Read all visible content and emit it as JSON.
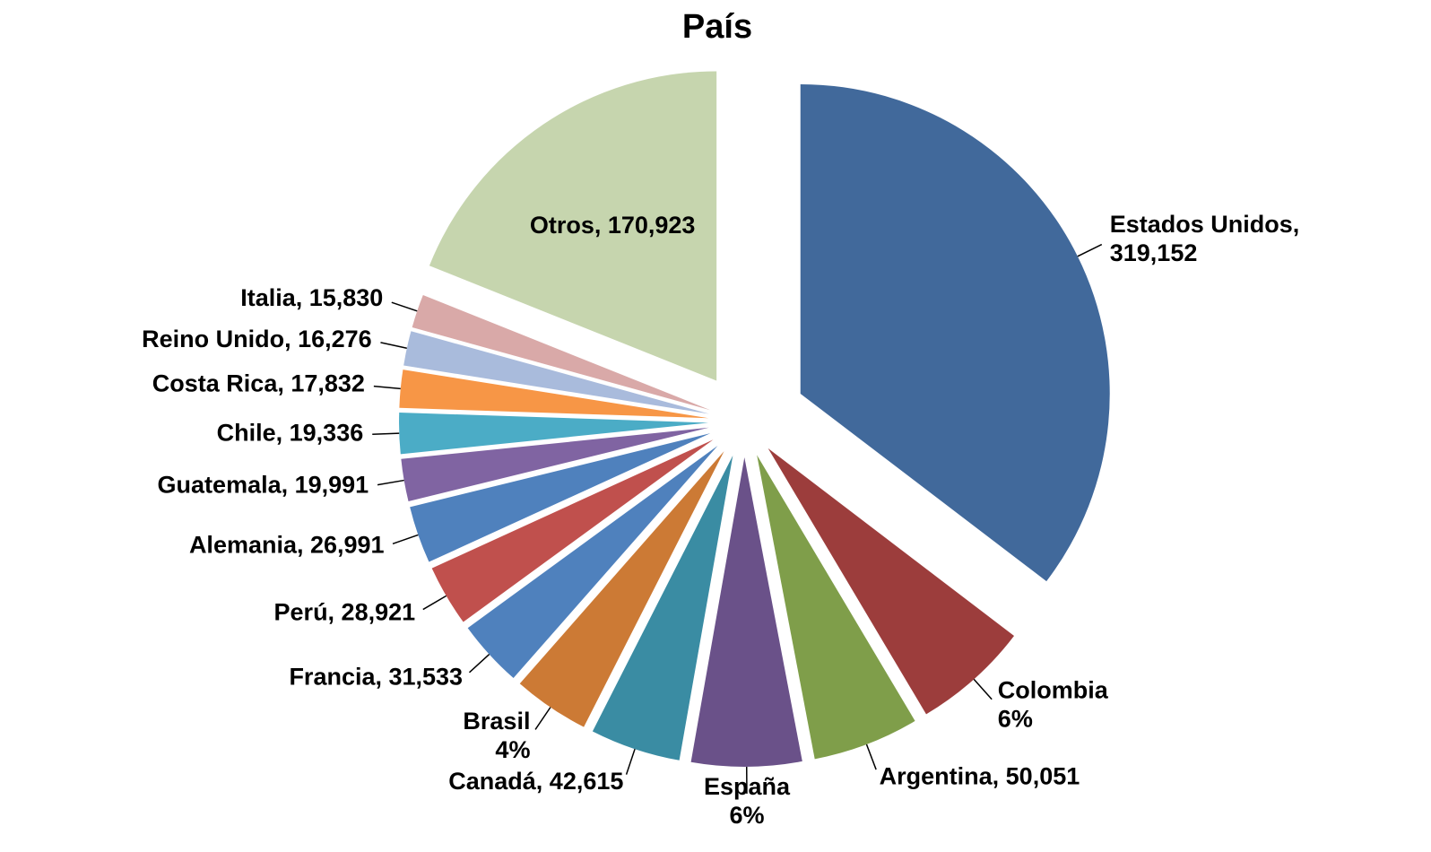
{
  "chart_data": {
    "type": "pie",
    "title": "País",
    "labels": [
      [
        "Estados Unidos,",
        "319,152"
      ],
      [
        "Colombia",
        "6%"
      ],
      [
        "Argentina, 50,051"
      ],
      [
        "España",
        "6%"
      ],
      [
        "Canadá, 42,615"
      ],
      [
        "Brasil",
        "4%"
      ],
      [
        "Francia, 31,533"
      ],
      [
        "Perú, 28,921"
      ],
      [
        "Alemania, 26,991"
      ],
      [
        "Guatemala, 19,991"
      ],
      [
        "Chile, 19,336"
      ],
      [
        "Costa Rica, 17,832"
      ],
      [
        "Reino Unido, 16,276"
      ],
      [
        "Italia, 15,830"
      ],
      [
        "Otros, 170,923"
      ]
    ],
    "values": [
      319152,
      55000,
      50051,
      52000,
      42615,
      36000,
      31533,
      28921,
      26991,
      19991,
      19336,
      17832,
      16276,
      15830,
      170923
    ],
    "colors": [
      "#41699b",
      "#9c3d3c",
      "#7f9e4a",
      "#6a5189",
      "#3a8ca3",
      "#cc7a35",
      "#4f81bd",
      "#c0504d",
      "#4f81bd",
      "#8064a2",
      "#4bacc6",
      "#f79646",
      "#a9bbdc",
      "#d9a9a8",
      "#c6d5ae"
    ]
  }
}
